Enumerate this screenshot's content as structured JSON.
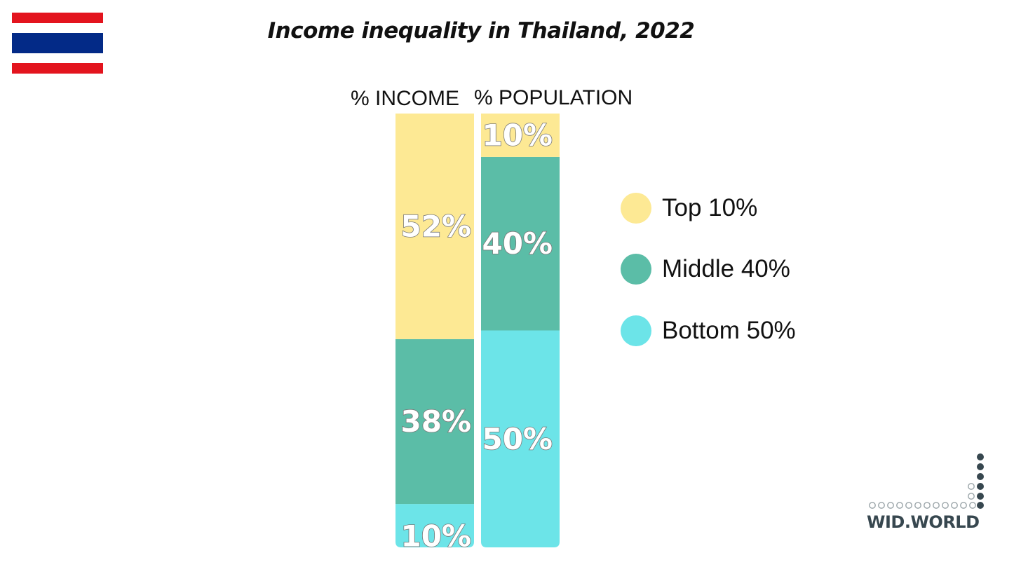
{
  "flag": {
    "colors": {
      "red": "#e3141e",
      "white": "#ffffff",
      "blue": "#032a87"
    }
  },
  "title": "Income inequality in Thailand, 2022",
  "columns": {
    "income_label": "% INCOME",
    "population_label": "% POPULATION"
  },
  "legend": {
    "items": [
      {
        "label": "Top 10%",
        "color": "#fde994"
      },
      {
        "label": "Middle 40%",
        "color": "#5bbda7"
      },
      {
        "label": "Bottom 50%",
        "color": "#6ce4e8"
      }
    ]
  },
  "chart_data": {
    "type": "bar",
    "stacked": true,
    "categories": [
      "% INCOME",
      "% POPULATION"
    ],
    "series": [
      {
        "name": "Bottom 50%",
        "color": "#6ce4e8",
        "values": [
          10,
          50
        ],
        "labels": [
          "10%",
          "50%"
        ]
      },
      {
        "name": "Middle 40%",
        "color": "#5bbda7",
        "values": [
          38,
          40
        ],
        "labels": [
          "38%",
          "40%"
        ]
      },
      {
        "name": "Top 10%",
        "color": "#fde994",
        "values": [
          52,
          10
        ],
        "labels": [
          "52%",
          "10%"
        ]
      }
    ],
    "ylim": [
      0,
      100
    ],
    "grid": false,
    "legend_position": "right"
  },
  "logo": {
    "text": "WID.WORLD",
    "dot_color": "#37474f"
  }
}
